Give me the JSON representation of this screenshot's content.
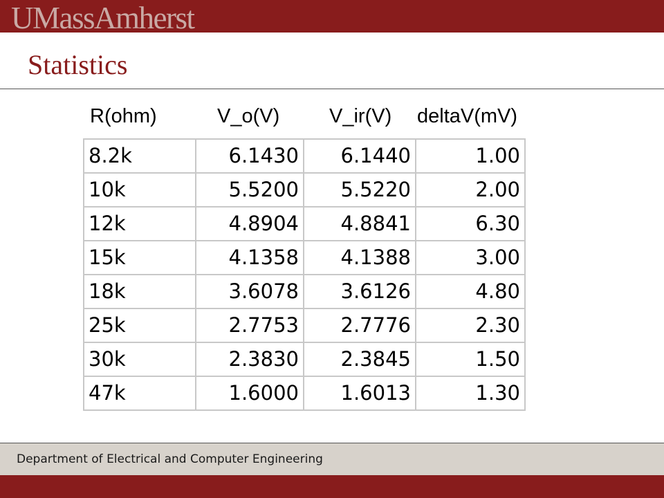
{
  "header": {
    "logo_text": "UMassAmherst"
  },
  "slide": {
    "title": "Statistics"
  },
  "table": {
    "headers": [
      "R(ohm)",
      "V_o(V)",
      "V_ir(V)",
      "deltaV(mV)"
    ],
    "rows": [
      [
        "8.2k",
        "6.1430",
        "6.1440",
        "1.00"
      ],
      [
        "10k",
        "5.5200",
        "5.5220",
        "2.00"
      ],
      [
        "12k",
        "4.8904",
        "4.8841",
        "6.30"
      ],
      [
        "15k",
        "4.1358",
        "4.1388",
        "3.00"
      ],
      [
        "18k",
        "3.6078",
        "3.6126",
        "4.80"
      ],
      [
        "25k",
        "2.7753",
        "2.7776",
        "2.30"
      ],
      [
        "30k",
        "2.3830",
        "2.3845",
        "1.50"
      ],
      [
        "47k",
        "1.6000",
        "1.6013",
        "1.30"
      ]
    ]
  },
  "footer": {
    "department": "Department of Electrical and Computer Engineering"
  },
  "colors": {
    "brand": "#881c1c",
    "footer_band": "#d7d2cb",
    "logo_text": "#c9a9a4"
  }
}
